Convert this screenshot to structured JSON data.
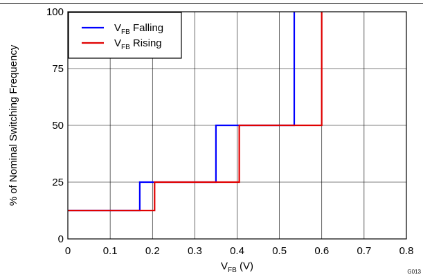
{
  "chart_data": {
    "type": "line",
    "title": "",
    "xlabel": {
      "main": "V",
      "sub": "FB",
      "rest": " (V)"
    },
    "ylabel": "% of Nominal Switching Frequency",
    "xlim": [
      0,
      0.8
    ],
    "ylim": [
      0,
      100
    ],
    "x_ticks": [
      0,
      0.1,
      0.2,
      0.3,
      0.4,
      0.5,
      0.6,
      0.7,
      0.8
    ],
    "x_tick_labels": [
      "0",
      "0.1",
      "0.2",
      "0.3",
      "0.4",
      "0.5",
      "0.6",
      "0.7",
      "0.8"
    ],
    "y_ticks": [
      0,
      25,
      50,
      75,
      100
    ],
    "y_tick_labels": [
      "0",
      "25",
      "50",
      "75",
      "100"
    ],
    "grid": true,
    "legend_position": "top-left",
    "figure_id": "G013",
    "series": [
      {
        "name": "VFB Falling",
        "legend": {
          "main": "V",
          "sub": "FB",
          "rest": " Falling"
        },
        "color": "#0000ff",
        "x": [
          0,
          0.17,
          0.17,
          0.35,
          0.35,
          0.535,
          0.535
        ],
        "y": [
          12.5,
          12.5,
          25,
          25,
          50,
          50,
          100
        ]
      },
      {
        "name": "VFB Rising",
        "legend": {
          "main": "V",
          "sub": "FB",
          "rest": " Rising"
        },
        "color": "#e00000",
        "x": [
          0,
          0.205,
          0.205,
          0.405,
          0.405,
          0.6,
          0.6
        ],
        "y": [
          12.5,
          12.5,
          25,
          25,
          50,
          50,
          100
        ]
      }
    ]
  }
}
